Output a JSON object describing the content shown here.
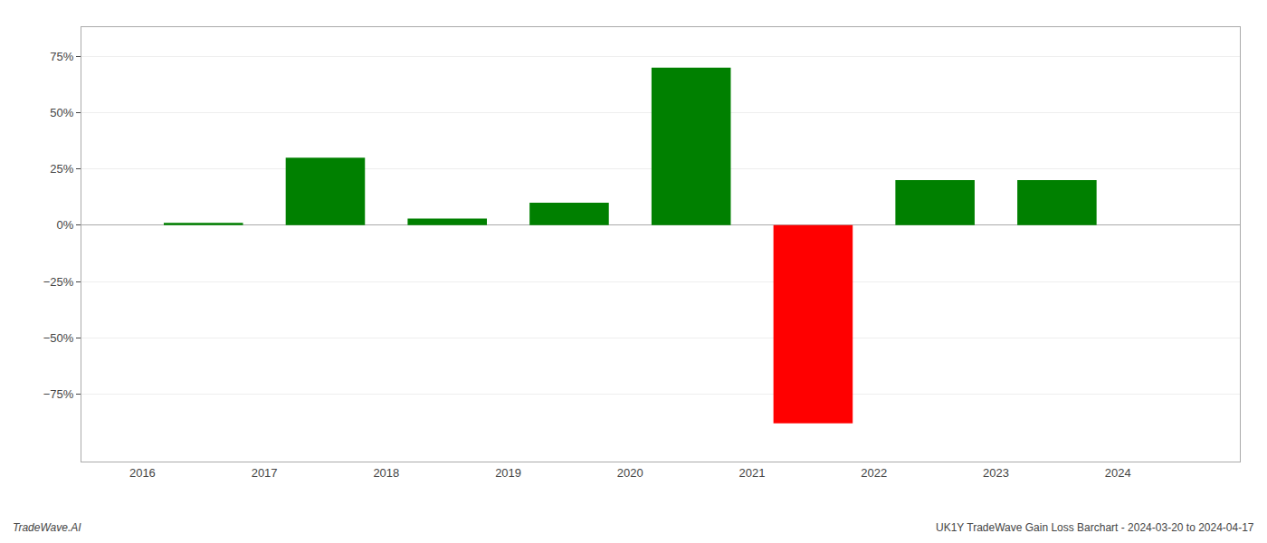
{
  "chart_data": {
    "type": "bar",
    "x": [
      2016.5,
      2017.5,
      2018.5,
      2019.5,
      2020.5,
      2021.5,
      2022.5,
      2023.5,
      2024.5
    ],
    "values": [
      0.01,
      0.3,
      0.03,
      0.1,
      0.7,
      -0.88,
      0.2,
      0.2,
      null
    ],
    "colors": [
      "#008000",
      "#008000",
      "#008000",
      "#008000",
      "#008000",
      "#ff0000",
      "#008000",
      "#008000",
      null
    ],
    "xlim": [
      2015.5,
      2025.0
    ],
    "xticks": [
      2016,
      2017,
      2018,
      2019,
      2020,
      2021,
      2022,
      2023,
      2024
    ],
    "ylim": [
      -1.05,
      0.88
    ],
    "yticks": [
      {
        "value": -0.75,
        "label": "−75%"
      },
      {
        "value": -0.5,
        "label": "−50%"
      },
      {
        "value": -0.25,
        "label": "−25%"
      },
      {
        "value": 0.0,
        "label": "0%"
      },
      {
        "value": 0.25,
        "label": "25%"
      },
      {
        "value": 0.5,
        "label": "50%"
      },
      {
        "value": 0.75,
        "label": "75%"
      }
    ],
    "grid": true,
    "annotations": [
      "TradeWave.AI",
      "UK1Y TradeWave Gain Loss Barchart - 2024-03-20 to 2024-04-17"
    ]
  }
}
